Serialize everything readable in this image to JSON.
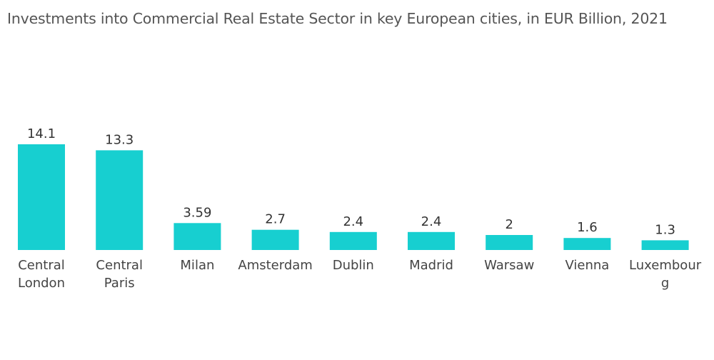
{
  "chart_data": {
    "type": "bar",
    "title": "Investments into Commercial Real Estate Sector in key European cities, in EUR Billion, 2021",
    "categories": [
      [
        "Central",
        "London"
      ],
      [
        "Central",
        "Paris"
      ],
      [
        "Milan"
      ],
      [
        "Amsterdam"
      ],
      [
        "Dublin"
      ],
      [
        "Madrid"
      ],
      [
        "Warsaw"
      ],
      [
        "Vienna"
      ],
      [
        "Luxembour",
        "g"
      ]
    ],
    "values": [
      14.1,
      13.3,
      3.59,
      2.7,
      2.4,
      2.4,
      2,
      1.6,
      1.3
    ],
    "value_labels": [
      "14.1",
      "13.3",
      "3.59",
      "2.7",
      "2.4",
      "2.4",
      "2",
      "1.6",
      "1.3"
    ],
    "bar_color": "#17cfd0",
    "grid": false,
    "legend": "none"
  }
}
